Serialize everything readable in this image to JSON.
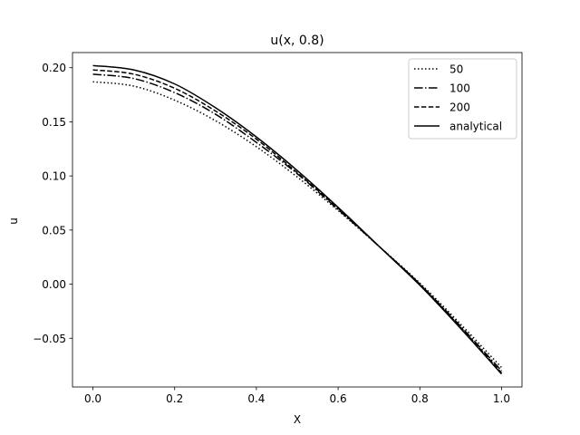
{
  "chart_data": {
    "type": "line",
    "title": "u(x, 0.8)",
    "xlabel": "X",
    "ylabel": "u",
    "xlim": [
      -0.05,
      1.05
    ],
    "ylim": [
      -0.095,
      0.214
    ],
    "xticks": [
      0.0,
      0.2,
      0.4,
      0.6,
      0.8,
      1.0
    ],
    "xtick_labels": [
      "0.0",
      "0.2",
      "0.4",
      "0.6",
      "0.8",
      "1.0"
    ],
    "yticks": [
      -0.05,
      0.0,
      0.05,
      0.1,
      0.15,
      0.2
    ],
    "ytick_labels": [
      "−0.05",
      "0.00",
      "0.05",
      "0.10",
      "0.15",
      "0.20"
    ],
    "grid": false,
    "legend_position": "top-right",
    "x": [
      0.0,
      0.1,
      0.2,
      0.3,
      0.4,
      0.5,
      0.6,
      0.7,
      0.8,
      0.9,
      1.0
    ],
    "series": [
      {
        "name": "50",
        "style": "dotted",
        "values": [
          0.187,
          0.183,
          0.17,
          0.151,
          0.127,
          0.099,
          0.068,
          0.035,
          0.001,
          -0.037,
          -0.077
        ]
      },
      {
        "name": "100",
        "style": "dashdot",
        "values": [
          0.194,
          0.19,
          0.177,
          0.157,
          0.131,
          0.102,
          0.069,
          0.035,
          0.0,
          -0.039,
          -0.08
        ]
      },
      {
        "name": "200",
        "style": "dashed",
        "values": [
          0.198,
          0.194,
          0.181,
          0.16,
          0.134,
          0.103,
          0.07,
          0.035,
          0.0,
          -0.04,
          -0.082
        ]
      },
      {
        "name": "analytical",
        "style": "solid",
        "values": [
          0.202,
          0.198,
          0.185,
          0.163,
          0.136,
          0.105,
          0.071,
          0.035,
          -0.001,
          -0.041,
          -0.083
        ]
      }
    ]
  }
}
